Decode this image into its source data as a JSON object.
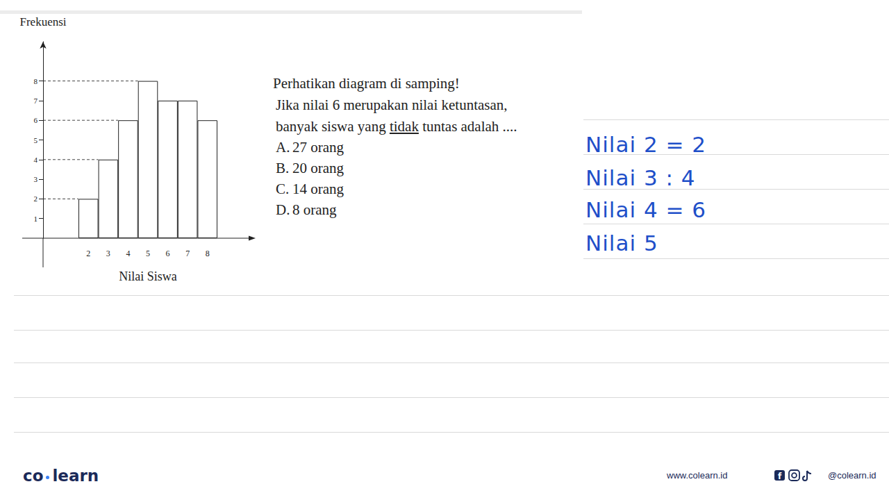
{
  "chart_data": {
    "type": "bar",
    "x_label": "Nilai Siswa",
    "y_label": "Frekuensi",
    "categories": [
      "2",
      "3",
      "4",
      "5",
      "6",
      "7",
      "8"
    ],
    "values": [
      2,
      4,
      6,
      8,
      7,
      7,
      6
    ],
    "color": "#ffffff",
    "ylim": [
      0,
      10
    ],
    "yticks": [
      1,
      2,
      3,
      4,
      5,
      6,
      7,
      8
    ],
    "grid": false
  },
  "question": {
    "intro": "Perhatikan diagram di samping!",
    "line2": "Jika nilai 6 merupakan nilai ketuntasan,",
    "line3": {
      "before": "banyak siswa yang",
      "underlined": "tidak",
      "after": "tuntas adalah ...."
    },
    "options": [
      {
        "letter": "A.",
        "text": "27 orang"
      },
      {
        "letter": "B.",
        "text": "20 orang"
      },
      {
        "letter": "C.",
        "text": "14 orang"
      },
      {
        "letter": "D.",
        "text": "8 orang"
      }
    ]
  },
  "handwriting": [
    "Nilai 2 = 2",
    "Nilai 3 : 4",
    "Nilai 4 = 6",
    "Nilai 5"
  ],
  "footer": {
    "brand_left": "co",
    "brand_right": "learn",
    "website": "www.colearn.id",
    "social": "@colearn.id"
  }
}
